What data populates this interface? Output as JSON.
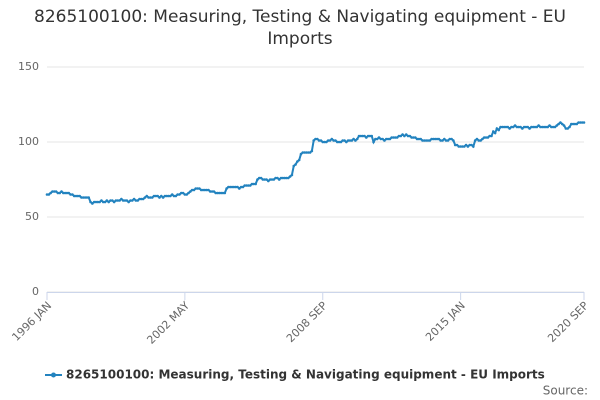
{
  "chart_data": {
    "type": "line",
    "title": "8265100100: Measuring, Testing & Navigating equipment - EU Imports",
    "source": "Source:",
    "categories": [
      "1996 JAN",
      null,
      null,
      null,
      null,
      null,
      null,
      null,
      null,
      null,
      null,
      null,
      null,
      null,
      null,
      null,
      null,
      null,
      null,
      null,
      null,
      null,
      null,
      null,
      null,
      null,
      null,
      null,
      null,
      null,
      null,
      null,
      null,
      null,
      null,
      null,
      null,
      null,
      null,
      null,
      null,
      null,
      null,
      null,
      null,
      null,
      null,
      null,
      null,
      null,
      null,
      null,
      null,
      null,
      null,
      null,
      null,
      null,
      null,
      null,
      null,
      null,
      null,
      null,
      null,
      null,
      null,
      null,
      null,
      null,
      null,
      null,
      null,
      null,
      null,
      null,
      "2002 MAY",
      null,
      null,
      null,
      null,
      null,
      null,
      null,
      null,
      null,
      null,
      null,
      null,
      null,
      null,
      null,
      null,
      null,
      null,
      null,
      null,
      null,
      null,
      null,
      null,
      null,
      null,
      null,
      null,
      null,
      null,
      null,
      null,
      null,
      null,
      null,
      null,
      null,
      null,
      null,
      null,
      null,
      null,
      null,
      null,
      null,
      null,
      null,
      null,
      null,
      null,
      null,
      null,
      null,
      null,
      null,
      null,
      null,
      null,
      null,
      null,
      null,
      null,
      null,
      null,
      null,
      null,
      null,
      null,
      null,
      null,
      null,
      null,
      null,
      null,
      null,
      "2008 SEP",
      null,
      null,
      null,
      null,
      null,
      null,
      null,
      null,
      null,
      null,
      null,
      null,
      null,
      null,
      null,
      null,
      null,
      null,
      null,
      null,
      null,
      null,
      null,
      null,
      null,
      null,
      null,
      null,
      null,
      null,
      null,
      null,
      null,
      null,
      null,
      null,
      null,
      null,
      null,
      null,
      null,
      null,
      null,
      null,
      null,
      null,
      null,
      null,
      null,
      null,
      null,
      null,
      null,
      null,
      null,
      null,
      null,
      null,
      null,
      null,
      null,
      null,
      null,
      null,
      null,
      null,
      null,
      null,
      null,
      null,
      null,
      null,
      null,
      null,
      null,
      "2015 JAN",
      null,
      null,
      null,
      null,
      null,
      null,
      null,
      null,
      null,
      null,
      null,
      null,
      null,
      null,
      null,
      null,
      null,
      null,
      null,
      null,
      null,
      null,
      null,
      null,
      null,
      null,
      null,
      null,
      null,
      null,
      null,
      null,
      null,
      null,
      null,
      null,
      null,
      null,
      null,
      null,
      null,
      null,
      null,
      null,
      null,
      null,
      null,
      null,
      null,
      null,
      null,
      null,
      null,
      null,
      null,
      null,
      null,
      null,
      null,
      null,
      null,
      null,
      null,
      null,
      null,
      null,
      null,
      "2020 SEP"
    ],
    "series": [
      {
        "name": "8265100100: Measuring, Testing & Navigating equipment - EU Imports",
        "color": "#2383bf",
        "values": [
          65,
          65,
          66,
          67,
          67,
          67,
          66,
          66,
          67,
          66,
          66,
          66,
          66,
          65,
          65,
          64,
          64,
          64,
          64,
          63,
          63,
          63,
          63,
          63,
          60,
          59,
          60,
          60,
          60,
          60,
          61,
          60,
          60,
          61,
          60,
          61,
          61,
          60,
          61,
          61,
          61,
          62,
          61,
          61,
          61,
          60,
          61,
          61,
          62,
          61,
          61,
          62,
          62,
          62,
          63,
          64,
          63,
          63,
          63,
          64,
          64,
          64,
          63,
          64,
          63,
          64,
          64,
          64,
          64,
          65,
          64,
          64,
          65,
          65,
          66,
          66,
          65,
          65,
          66,
          67,
          68,
          68,
          69,
          69,
          69,
          68,
          68,
          68,
          68,
          68,
          67,
          67,
          67,
          66,
          66,
          66,
          66,
          66,
          66,
          69,
          70,
          70,
          70,
          70,
          70,
          70,
          69,
          70,
          70,
          71,
          71,
          71,
          71,
          72,
          72,
          72,
          75,
          76,
          76,
          75,
          75,
          75,
          74,
          75,
          75,
          75,
          76,
          76,
          75,
          76,
          76,
          76,
          76,
          76,
          77,
          78,
          84,
          85,
          87,
          88,
          92,
          93,
          93,
          93,
          93,
          93,
          94,
          101,
          102,
          102,
          101,
          101,
          100,
          100,
          100,
          101,
          101,
          102,
          101,
          101,
          100,
          100,
          100,
          101,
          101,
          100,
          101,
          101,
          101,
          102,
          101,
          102,
          104,
          104,
          104,
          104,
          103,
          104,
          104,
          104,
          100,
          102,
          102,
          103,
          102,
          102,
          101,
          102,
          102,
          102,
          103,
          103,
          103,
          103,
          104,
          104,
          105,
          104,
          105,
          104,
          104,
          103,
          103,
          103,
          102,
          102,
          102,
          101,
          101,
          101,
          101,
          101,
          102,
          102,
          102,
          102,
          102,
          101,
          101,
          102,
          101,
          101,
          102,
          102,
          101,
          98,
          98,
          97,
          97,
          97,
          97,
          98,
          97,
          98,
          98,
          97,
          101,
          102,
          101,
          101,
          102,
          103,
          103,
          103,
          104,
          104,
          107,
          106,
          109,
          108,
          110,
          110,
          110,
          110,
          110,
          109,
          110,
          110,
          111,
          110,
          110,
          110,
          109,
          110,
          110,
          110,
          109,
          110,
          110,
          110,
          110,
          111,
          110,
          110,
          110,
          110,
          110,
          111,
          110,
          110,
          110,
          111,
          112,
          113,
          112,
          111,
          109,
          109,
          110,
          112,
          112,
          112,
          112,
          113,
          113,
          113,
          113
        ]
      }
    ],
    "ylim": [
      0,
      150
    ],
    "yticks": [
      0,
      50,
      100,
      150
    ],
    "grid": true
  }
}
